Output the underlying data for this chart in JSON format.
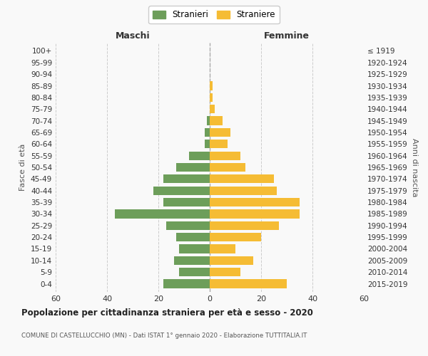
{
  "age_groups": [
    "100+",
    "95-99",
    "90-94",
    "85-89",
    "80-84",
    "75-79",
    "70-74",
    "65-69",
    "60-64",
    "55-59",
    "50-54",
    "45-49",
    "40-44",
    "35-39",
    "30-34",
    "25-29",
    "20-24",
    "15-19",
    "10-14",
    "5-9",
    "0-4"
  ],
  "birth_years": [
    "≤ 1919",
    "1920-1924",
    "1925-1929",
    "1930-1934",
    "1935-1939",
    "1940-1944",
    "1945-1949",
    "1950-1954",
    "1955-1959",
    "1960-1964",
    "1965-1969",
    "1970-1974",
    "1975-1979",
    "1980-1984",
    "1985-1989",
    "1990-1994",
    "1995-1999",
    "2000-2004",
    "2005-2009",
    "2010-2014",
    "2015-2019"
  ],
  "maschi": [
    0,
    0,
    0,
    0,
    0,
    0,
    1,
    2,
    2,
    8,
    13,
    18,
    22,
    18,
    37,
    17,
    13,
    12,
    14,
    12,
    18
  ],
  "femmine": [
    0,
    0,
    0,
    1,
    1,
    2,
    5,
    8,
    7,
    12,
    14,
    25,
    26,
    35,
    35,
    27,
    20,
    10,
    17,
    12,
    30
  ],
  "maschi_color": "#6d9e5a",
  "femmine_color": "#f5bc34",
  "title": "Popolazione per cittadinanza straniera per età e sesso - 2020",
  "subtitle": "COMUNE DI CASTELLUCCHIO (MN) - Dati ISTAT 1° gennaio 2020 - Elaborazione TUTTITALIA.IT",
  "xlabel_left": "Maschi",
  "xlabel_right": "Femmine",
  "ylabel_left": "Fasce di età",
  "ylabel_right": "Anni di nascita",
  "legend_maschi": "Stranieri",
  "legend_femmine": "Straniere",
  "xlim": 60,
  "background_color": "#f9f9f9",
  "grid_color": "#cccccc"
}
